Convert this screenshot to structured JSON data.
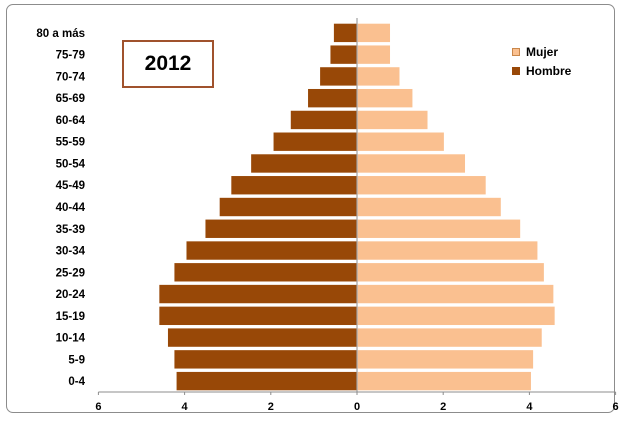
{
  "chart_data": {
    "type": "bar",
    "orientation": "horizontal-population-pyramid",
    "title": "2012",
    "categories": [
      "0-4",
      "5-9",
      "10-14",
      "15-19",
      "20-24",
      "25-29",
      "30-34",
      "35-39",
      "40-44",
      "45-49",
      "50-54",
      "55-59",
      "60-64",
      "65-69",
      "70-74",
      "75-79",
      "80 a más"
    ],
    "series": [
      {
        "name": "Mujer",
        "color": "#fac090",
        "side": "right",
        "values": [
          4.05,
          4.1,
          4.3,
          4.6,
          4.57,
          4.35,
          4.2,
          3.8,
          3.35,
          3.0,
          2.52,
          2.03,
          1.65,
          1.3,
          1.0,
          0.78,
          0.78
        ]
      },
      {
        "name": "Hombre",
        "color": "#984807",
        "side": "left",
        "values": [
          4.2,
          4.25,
          4.4,
          4.6,
          4.6,
          4.25,
          3.97,
          3.53,
          3.2,
          2.93,
          2.47,
          1.95,
          1.55,
          1.15,
          0.87,
          0.63,
          0.55
        ]
      }
    ],
    "x_ticks": [
      "6",
      "4",
      "2",
      "0",
      "2",
      "4",
      "6"
    ],
    "xlim": [
      -6,
      6
    ],
    "legend": {
      "position": "top-right",
      "entries": [
        "Mujer",
        "Hombre"
      ]
    },
    "grid": false
  }
}
